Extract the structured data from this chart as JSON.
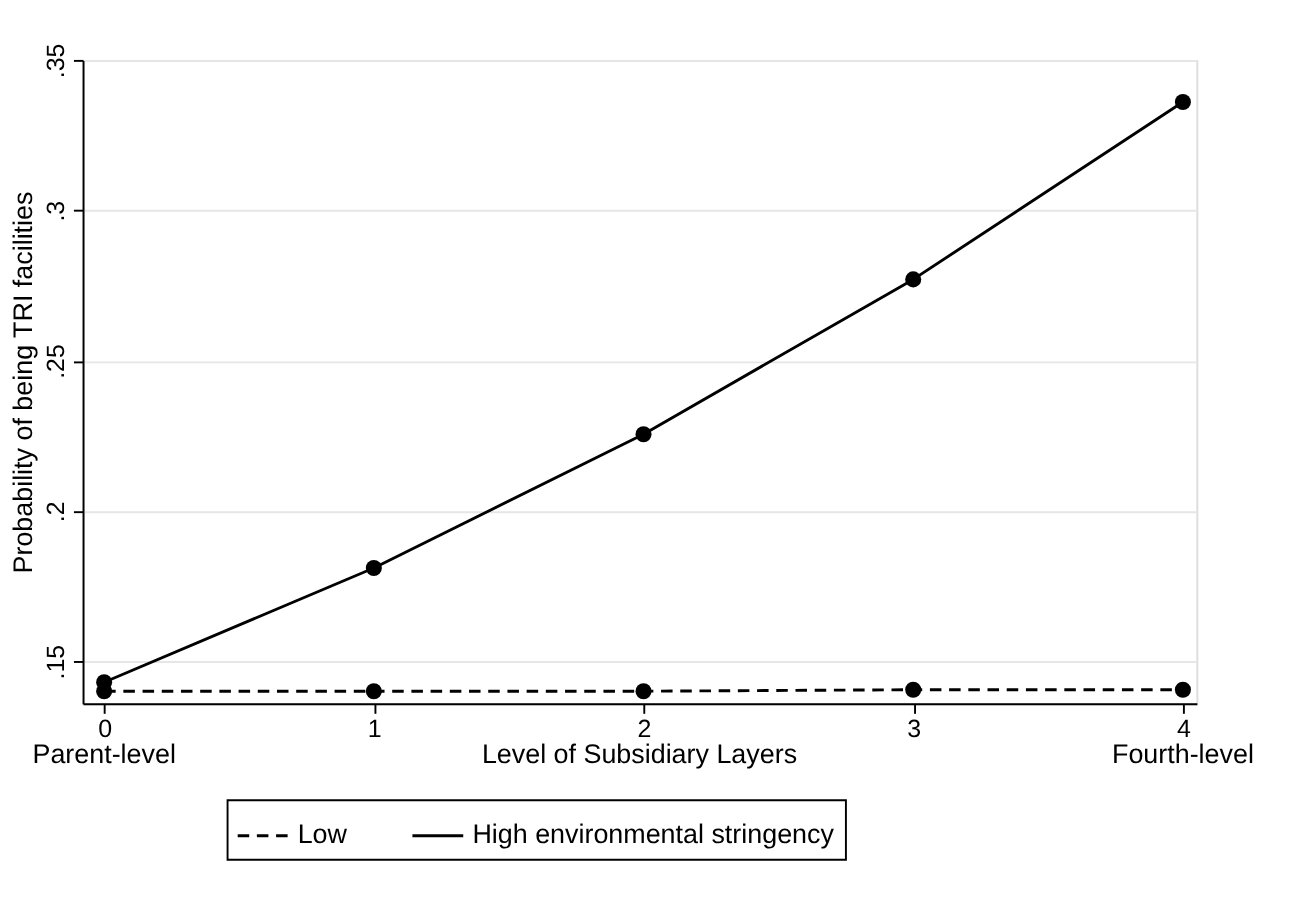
{
  "chart_data": {
    "type": "line",
    "xlabel": "Level of Subsidiary Layers",
    "ylabel": "Probability of being TRI facilities",
    "x": [
      0,
      1,
      2,
      3,
      4
    ],
    "series": [
      {
        "name": "Low",
        "color": "#000000",
        "line_style": "dashed",
        "values": [
          0.14,
          0.14,
          0.14,
          0.1405,
          0.1405
        ]
      },
      {
        "name": "High environmental stringency",
        "color": "#000000",
        "line_style": "solid",
        "values": [
          0.143,
          0.181,
          0.2255,
          0.277,
          0.336
        ]
      }
    ],
    "xlim": [
      -0.08,
      4.05
    ],
    "xticks": [
      0,
      1,
      2,
      3,
      4
    ],
    "ylim": [
      0.136,
      0.35
    ],
    "yticks": [
      {
        "value": 0.15,
        "label": ".15"
      },
      {
        "value": 0.2,
        "label": ".2"
      },
      {
        "value": 0.25,
        "label": ".25"
      },
      {
        "value": 0.3,
        "label": ".3"
      },
      {
        "value": 0.35,
        "label": ".35"
      }
    ],
    "annotations": [
      "Parent-level",
      "Fourth-level"
    ],
    "grid": "y",
    "legend": "bottom",
    "marker": "circle"
  }
}
